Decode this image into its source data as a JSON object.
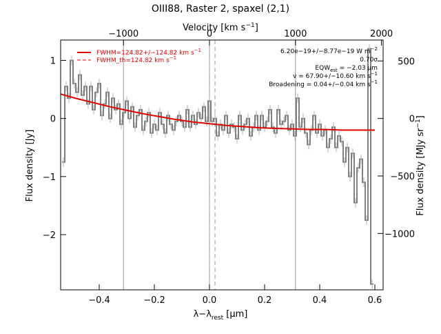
{
  "chart_data": {
    "type": "line",
    "title": "OIII88, Raster 2, spaxel (2,1)",
    "x_axis": {
      "label_main": "λ−λ",
      "label_sub": "rest",
      "label_unit": " [μm]",
      "range": [
        -0.54,
        0.63
      ],
      "ticks": [
        -0.4,
        -0.2,
        0.0,
        0.2,
        0.4,
        0.6
      ],
      "tick_labels": [
        "−0.4",
        "−0.2",
        "0.0",
        "0.2",
        "0.4",
        "0.6"
      ]
    },
    "top_axis": {
      "label_main": "Velocity [km s",
      "label_sup": "−1",
      "label_tail": "]",
      "ticks_x": [
        -0.312,
        0.0,
        0.312,
        0.624
      ],
      "tick_labels": [
        "−1000",
        "0",
        "1000",
        "2000"
      ]
    },
    "y_axis_left": {
      "label": "Flux density [Jy]",
      "range": [
        -2.95,
        1.35
      ],
      "ticks": [
        1,
        0,
        -1,
        -2
      ],
      "tick_labels": [
        "1",
        "0",
        "−1",
        "−2"
      ]
    },
    "y_axis_right": {
      "label_main": "Flux density [MJy sr",
      "label_sup": "−1",
      "label_tail": "]",
      "ticks_at_left_units": [
        0.99,
        0.0,
        -0.99,
        -1.98
      ],
      "tick_labels": [
        "500",
        "0",
        "−500",
        "−1000"
      ]
    },
    "vertical_lines": [
      {
        "x": -0.312,
        "style": "solid"
      },
      {
        "x": 0.0,
        "style": "solid"
      },
      {
        "x": 0.02,
        "style": "dashed"
      },
      {
        "x": 0.312,
        "style": "solid"
      }
    ],
    "legend": {
      "placement": "top-left",
      "fwhm_main": "FWHM=124.82+/−124.82 km s",
      "fwhm_sup": "−1",
      "fwhm_th_main": "FWHM_th=124.82 km s",
      "fwhm_th_sup": "−1"
    },
    "annotations": {
      "flux_main": "6.20e−19+/−8.77e−19 W m",
      "flux_sup": "−2",
      "sigma": "0.70σ",
      "eqw_main": "EQW",
      "eqw_sub": "est",
      "eqw_value": " = −2.03 μm",
      "v_text": "v = 67.90+/−10.60 km s",
      "v_sup": "−1",
      "broad_text": "Broadening = 0.04+/−0.04 km s",
      "broad_sup": "−1"
    },
    "series": [
      {
        "kind": "data-step",
        "color": "#808080",
        "x": [
          -0.53,
          -0.52,
          -0.51,
          -0.5,
          -0.49,
          -0.48,
          -0.47,
          -0.46,
          -0.45,
          -0.44,
          -0.43,
          -0.42,
          -0.41,
          -0.4,
          -0.39,
          -0.38,
          -0.37,
          -0.36,
          -0.35,
          -0.34,
          -0.33,
          -0.32,
          -0.31,
          -0.3,
          -0.29,
          -0.28,
          -0.27,
          -0.26,
          -0.25,
          -0.24,
          -0.23,
          -0.22,
          -0.21,
          -0.2,
          -0.19,
          -0.18,
          -0.17,
          -0.16,
          -0.15,
          -0.14,
          -0.13,
          -0.12,
          -0.11,
          -0.1,
          -0.09,
          -0.08,
          -0.07,
          -0.06,
          -0.05,
          -0.04,
          -0.03,
          -0.02,
          -0.01,
          0.0,
          0.01,
          0.02,
          0.03,
          0.04,
          0.05,
          0.06,
          0.07,
          0.08,
          0.09,
          0.1,
          0.11,
          0.12,
          0.13,
          0.14,
          0.15,
          0.16,
          0.17,
          0.18,
          0.19,
          0.2,
          0.21,
          0.22,
          0.23,
          0.24,
          0.25,
          0.26,
          0.27,
          0.28,
          0.29,
          0.3,
          0.31,
          0.32,
          0.33,
          0.34,
          0.35,
          0.36,
          0.37,
          0.38,
          0.39,
          0.4,
          0.41,
          0.42,
          0.43,
          0.44,
          0.45,
          0.46,
          0.47,
          0.48,
          0.49,
          0.5,
          0.51,
          0.52,
          0.53,
          0.54,
          0.55,
          0.56,
          0.57,
          0.58,
          0.59
        ],
        "y": [
          -0.75,
          0.55,
          0.35,
          1.0,
          0.6,
          0.45,
          0.75,
          0.4,
          0.55,
          0.25,
          0.55,
          0.15,
          0.45,
          0.6,
          0.05,
          0.25,
          0.45,
          0.0,
          0.35,
          0.15,
          0.25,
          -0.1,
          0.1,
          0.3,
          0.0,
          0.2,
          -0.15,
          0.05,
          0.15,
          -0.2,
          -0.05,
          0.1,
          -0.25,
          -0.1,
          -0.2,
          0.1,
          -0.1,
          -0.25,
          0.05,
          -0.1,
          -0.2,
          -0.05,
          0.05,
          -0.05,
          -0.15,
          0.15,
          -0.15,
          0.05,
          -0.1,
          0.1,
          0.0,
          0.2,
          -0.05,
          0.3,
          -0.05,
          0.0,
          -0.3,
          -0.1,
          -0.2,
          0.05,
          -0.25,
          -0.1,
          -0.15,
          -0.35,
          0.05,
          -0.2,
          -0.1,
          0.0,
          -0.3,
          -0.15,
          0.05,
          -0.2,
          0.05,
          -0.15,
          -0.05,
          0.15,
          -0.15,
          -0.25,
          0.15,
          -0.1,
          -0.05,
          0.05,
          -0.2,
          -0.1,
          -0.3,
          0.35,
          -0.15,
          0.0,
          -0.25,
          -0.45,
          -0.2,
          0.05,
          -0.25,
          -0.1,
          -0.3,
          -0.2,
          -0.5,
          -0.35,
          -0.15,
          -0.5,
          -0.3,
          -0.4,
          -0.75,
          -0.5,
          -1.0,
          -0.6,
          -1.45,
          -0.85,
          -0.7,
          -1.1,
          -1.75,
          1.2,
          -2.85
        ]
      },
      {
        "kind": "fit",
        "color": "#e00000",
        "x": [
          -0.54,
          -0.48,
          -0.42,
          -0.36,
          -0.3,
          -0.24,
          -0.18,
          -0.12,
          -0.06,
          0.0,
          0.06,
          0.12,
          0.18,
          0.24,
          0.3,
          0.36,
          0.42,
          0.48,
          0.54,
          0.6
        ],
        "y": [
          0.42,
          0.34,
          0.27,
          0.2,
          0.14,
          0.08,
          0.03,
          -0.02,
          -0.06,
          -0.09,
          -0.12,
          -0.14,
          -0.16,
          -0.17,
          -0.18,
          -0.19,
          -0.19,
          -0.2,
          -0.2,
          -0.2
        ]
      }
    ]
  }
}
